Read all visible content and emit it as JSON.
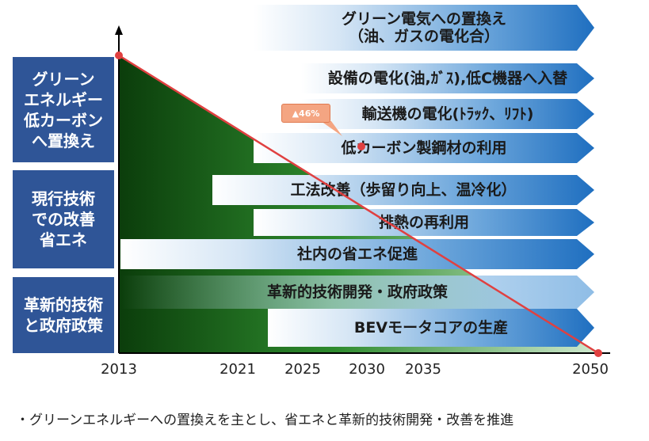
{
  "categories": [
    "グリーン\nエネルギー\n低カーボン\nへ置換え",
    "現行技術\nでの改善\n省エネ",
    "革新的技術\nと政府政策"
  ],
  "arrows": [
    "グリーン電気への置換え\n（油、ガスの電化合）",
    "設備の電化(油,ｶﾞｽ),低C機器へ入替",
    "輸送機の電化(ﾄﾗｯｸ、ﾘﾌﾄ)",
    "低カーボン製鋼材の利用",
    "工法改善（歩留り向上、温冷化）",
    "排熱の再利用",
    "社内の省エネ促進",
    "革新的技術開発・政府政策",
    "BEVモータコアの生産"
  ],
  "x_ticks": [
    "2013",
    "2021",
    "2025",
    "2030",
    "2035",
    "2050"
  ],
  "callout": "▲46%",
  "footnote": "・グリーンエネルギーへの置換えを主とし、省エネと革新的技術開発・改善を推進",
  "colors": {
    "category_bg": "#2f5597",
    "arrow_dark": "#1f6fc0",
    "area_dark": "#0b3d0b",
    "area_mid": "#2e8b2e",
    "line": "#e04040",
    "callout": "#f4a582"
  }
}
